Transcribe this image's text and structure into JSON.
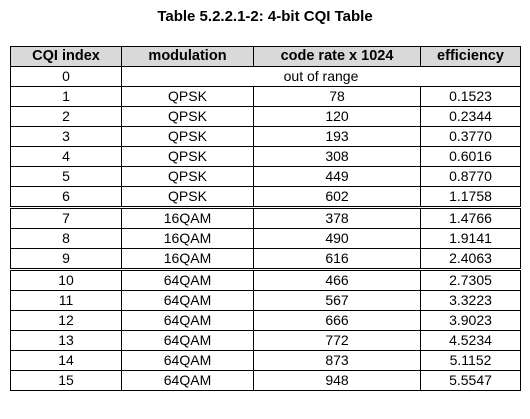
{
  "title": "Table 5.2.2.1-2: 4-bit CQI Table",
  "columns": [
    "CQI index",
    "modulation",
    "code rate x 1024",
    "efficiency"
  ],
  "out_of_range_row": {
    "index": "0",
    "text": "out of range"
  },
  "rows": [
    {
      "index": "1",
      "modulation": "QPSK",
      "code_rate": "78",
      "efficiency": "0.1523"
    },
    {
      "index": "2",
      "modulation": "QPSK",
      "code_rate": "120",
      "efficiency": "0.2344"
    },
    {
      "index": "3",
      "modulation": "QPSK",
      "code_rate": "193",
      "efficiency": "0.3770"
    },
    {
      "index": "4",
      "modulation": "QPSK",
      "code_rate": "308",
      "efficiency": "0.6016"
    },
    {
      "index": "5",
      "modulation": "QPSK",
      "code_rate": "449",
      "efficiency": "0.8770"
    },
    {
      "index": "6",
      "modulation": "QPSK",
      "code_rate": "602",
      "efficiency": "1.1758"
    },
    {
      "index": "7",
      "modulation": "16QAM",
      "code_rate": "378",
      "efficiency": "1.4766"
    },
    {
      "index": "8",
      "modulation": "16QAM",
      "code_rate": "490",
      "efficiency": "1.9141"
    },
    {
      "index": "9",
      "modulation": "16QAM",
      "code_rate": "616",
      "efficiency": "2.4063"
    },
    {
      "index": "10",
      "modulation": "64QAM",
      "code_rate": "466",
      "efficiency": "2.7305"
    },
    {
      "index": "11",
      "modulation": "64QAM",
      "code_rate": "567",
      "efficiency": "3.3223"
    },
    {
      "index": "12",
      "modulation": "64QAM",
      "code_rate": "666",
      "efficiency": "3.9023"
    },
    {
      "index": "13",
      "modulation": "64QAM",
      "code_rate": "772",
      "efficiency": "4.5234"
    },
    {
      "index": "14",
      "modulation": "64QAM",
      "code_rate": "873",
      "efficiency": "5.1152"
    },
    {
      "index": "15",
      "modulation": "64QAM",
      "code_rate": "948",
      "efficiency": "5.5547"
    }
  ],
  "colors": {
    "header_background": "#d9d9d9",
    "border": "#000000"
  }
}
